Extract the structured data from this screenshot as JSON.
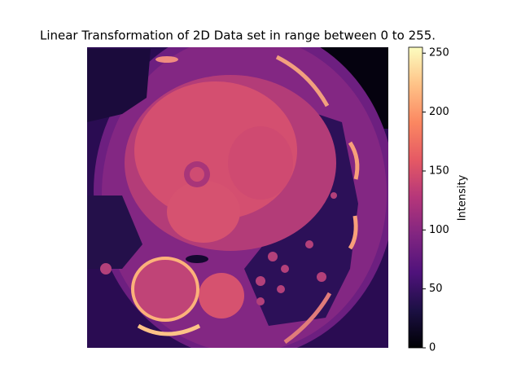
{
  "chart_data": {
    "type": "image",
    "title": "Linear Transformation of 2D Data set in range between 0 to 255.",
    "cmap": "magma",
    "colorbar": {
      "label": "Intensity",
      "lim": [
        0,
        255
      ],
      "ticks": [
        0,
        50,
        100,
        150,
        200,
        250
      ]
    }
  }
}
